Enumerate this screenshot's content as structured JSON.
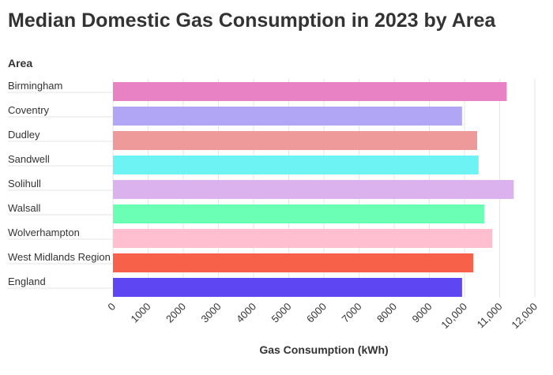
{
  "chart_data": {
    "type": "bar",
    "orientation": "horizontal",
    "title": "Median Domestic Gas Consumption in 2023 by Area",
    "y_label": "Area",
    "x_label": "Gas Consumption (kWh)",
    "categories": [
      "Birmingham",
      "Coventry",
      "Dudley",
      "Sandwell",
      "Solihull",
      "Walsall",
      "Wolverhampton",
      "West Midlands Region",
      "England"
    ],
    "values": [
      11200,
      9930,
      10360,
      10400,
      11400,
      10560,
      10790,
      10250,
      9930
    ],
    "colors": [
      "#e882c4",
      "#b1a6f5",
      "#ee9a9a",
      "#6ef3f5",
      "#dcb2ee",
      "#6affb4",
      "#ffbfd0",
      "#f7614a",
      "#5f46f3"
    ],
    "xlim": [
      0,
      12000
    ],
    "xticks": [
      0,
      1000,
      2000,
      3000,
      4000,
      5000,
      6000,
      7000,
      8000,
      9000,
      {
        "value": 10000,
        "label": "10,000"
      },
      {
        "value": 11000,
        "label": "11,000"
      },
      {
        "value": 12000,
        "label": "12,000"
      }
    ],
    "grid": true
  }
}
